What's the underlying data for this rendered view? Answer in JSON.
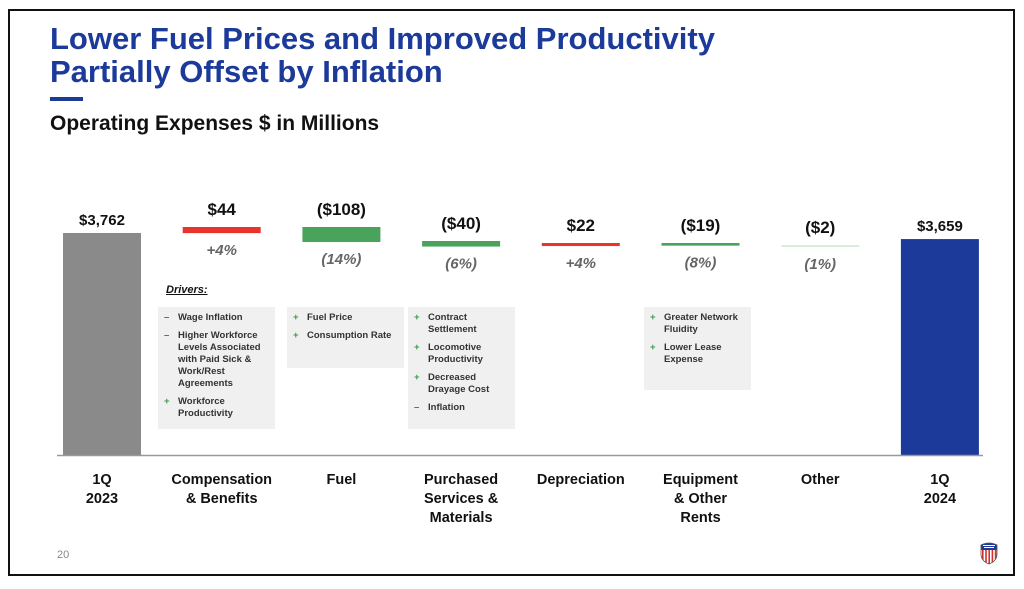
{
  "slide": {
    "title": "Lower Fuel Prices and Improved Productivity\nPartially Offset by Inflation",
    "subtitle": "Operating Expenses $ in Millions",
    "page_number": "20",
    "logo_icon": "union-pacific-shield-icon",
    "drivers_heading": "Drivers:"
  },
  "colors": {
    "title_blue": "#1b3a9a",
    "start_bar": "#8a8a8a",
    "end_bar": "#1b3a9a",
    "increase": "#e8352c",
    "decrease": "#4aa35a",
    "decrease_light": "#d6efdc"
  },
  "chart_data": {
    "type": "bar",
    "subtype": "waterfall",
    "title": "Operating Expenses $ in Millions",
    "xlabel": "",
    "ylabel": "",
    "units": "$ millions",
    "grid": false,
    "legend": "none",
    "categories": [
      "1Q 2023",
      "Compensation & Benefits",
      "Fuel",
      "Purchased Services & Materials",
      "Depreciation",
      "Equipment & Other Rents",
      "Other",
      "1Q 2024"
    ],
    "category_lines": [
      [
        "1Q",
        "2023"
      ],
      [
        "Compensation",
        "& Benefits"
      ],
      [
        "Fuel"
      ],
      [
        "Purchased",
        "Services &",
        "Materials"
      ],
      [
        "Depreciation"
      ],
      [
        "Equipment",
        "& Other",
        "Rents"
      ],
      [
        "Other"
      ],
      [
        "1Q",
        "2024"
      ]
    ],
    "values": [
      3762,
      44,
      -108,
      -40,
      22,
      -19,
      -2,
      3659
    ],
    "kinds": [
      "total",
      "delta",
      "delta",
      "delta",
      "delta",
      "delta",
      "delta",
      "total"
    ],
    "value_labels": [
      "$3,762",
      "$44",
      "($108)",
      "($40)",
      "$22",
      "($19)",
      "($2)",
      "$3,659"
    ],
    "pct_labels": [
      "",
      "+4%",
      "(14%)",
      "(6%)",
      "+4%",
      "(8%)",
      "(1%)",
      ""
    ],
    "drivers": [
      [],
      [
        {
          "sign": "minus",
          "text": "Wage Inflation"
        },
        {
          "sign": "minus",
          "text": "Higher Workforce Levels Associated with Paid Sick & Work/Rest Agreements"
        },
        {
          "sign": "plus",
          "text": "Workforce Productivity"
        }
      ],
      [
        {
          "sign": "plus",
          "text": "Fuel Price"
        },
        {
          "sign": "plus",
          "text": "Consumption Rate"
        }
      ],
      [
        {
          "sign": "plus",
          "text": "Contract Settlement"
        },
        {
          "sign": "plus",
          "text": "Locomotive Productivity"
        },
        {
          "sign": "plus",
          "text": "Decreased Drayage Cost"
        },
        {
          "sign": "minus",
          "text": "Inflation"
        }
      ],
      [],
      [
        {
          "sign": "plus",
          "text": "Greater Network Fluidity"
        },
        {
          "sign": "plus",
          "text": "Lower Lease Expense"
        }
      ],
      [],
      []
    ]
  }
}
